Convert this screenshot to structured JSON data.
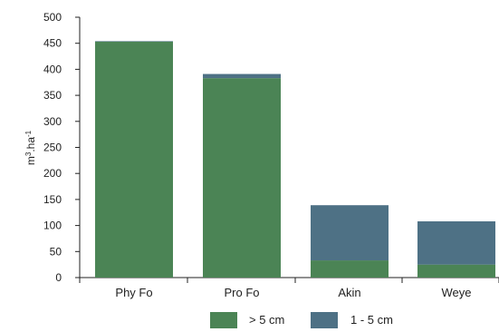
{
  "chart_data": {
    "type": "bar",
    "stacked": true,
    "categories": [
      "Phy Fo",
      "Pro Fo",
      "Akin",
      "Weye"
    ],
    "series": [
      {
        "name": "> 5 cm",
        "values": [
          453,
          383,
          33,
          25
        ],
        "color": "#4b8455"
      },
      {
        "name": "1 - 5 cm",
        "values": [
          1,
          8,
          106,
          83
        ],
        "color": "#4e7185"
      }
    ],
    "ylabel": "m3.ha-1",
    "ylim": [
      0,
      500
    ],
    "yticks": [
      0,
      50,
      100,
      150,
      200,
      250,
      300,
      350,
      400,
      450,
      500
    ],
    "grid": false,
    "legend_position": "bottom"
  }
}
